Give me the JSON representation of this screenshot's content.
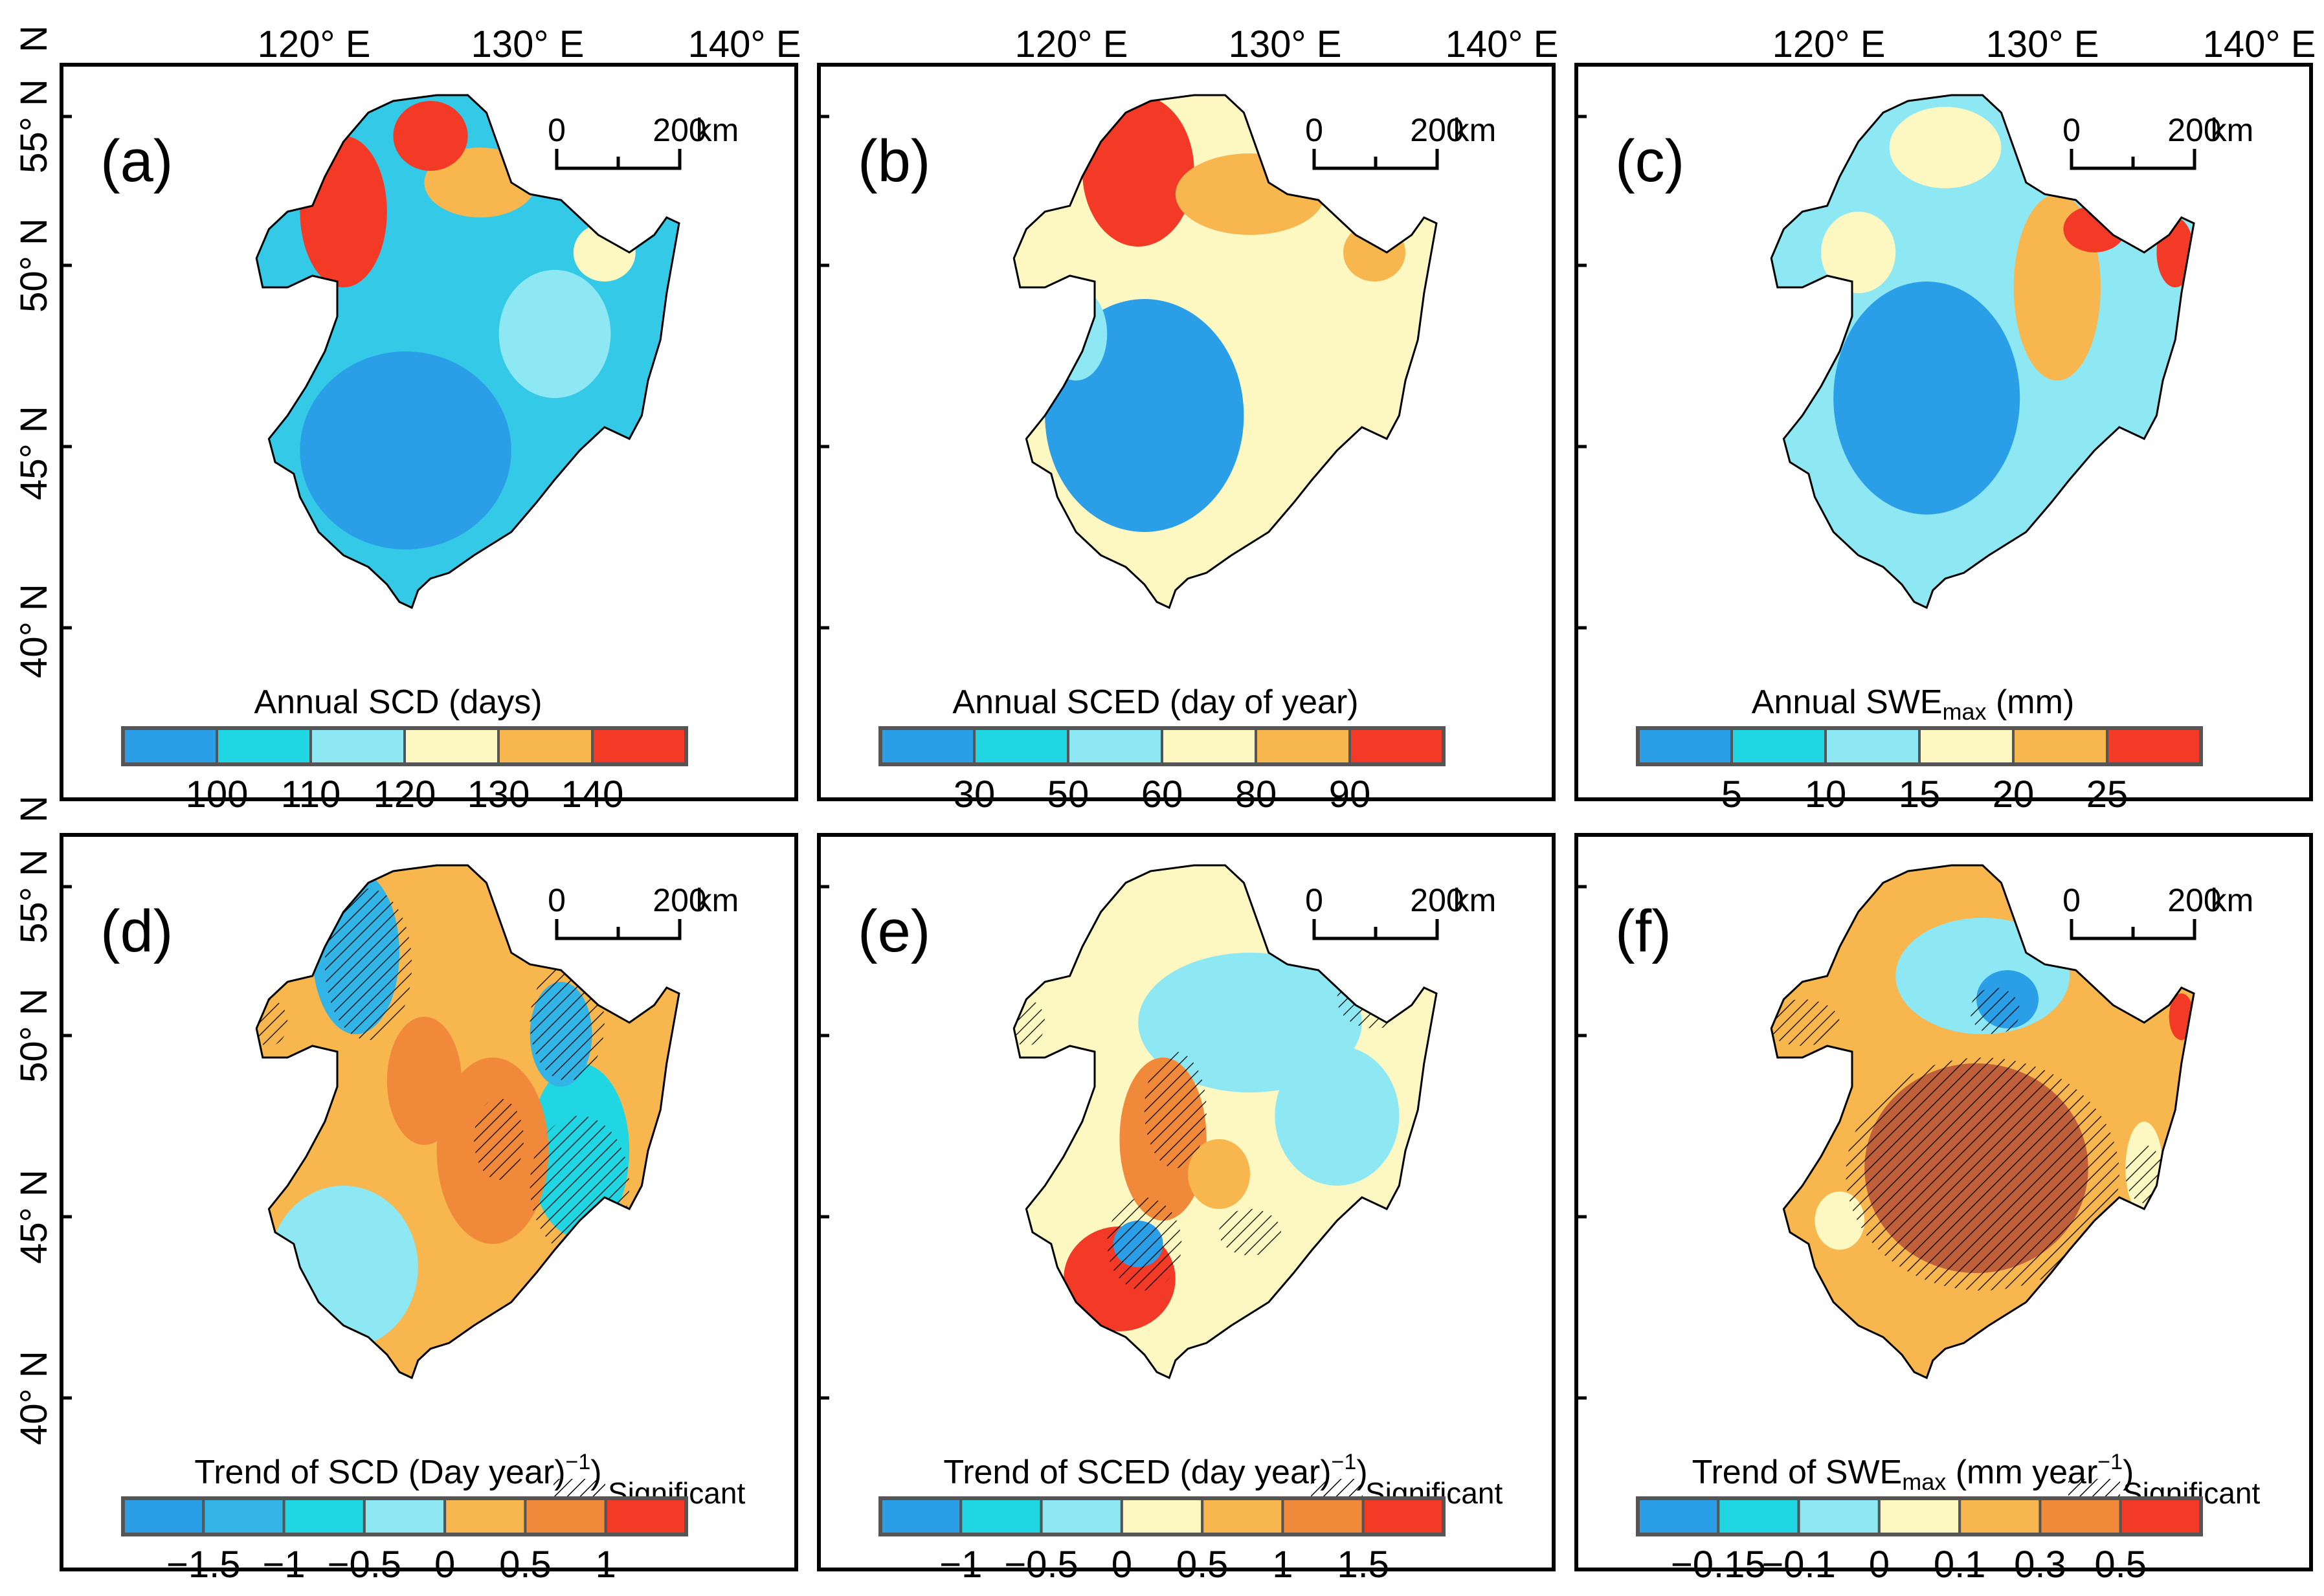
{
  "figure": {
    "lon_labels": [
      "120° E",
      "130° E",
      "140° E"
    ],
    "lat_labels": [
      "55° N",
      "50° N",
      "45° N",
      "40° N"
    ],
    "lat_edge_label": "N",
    "scale": {
      "zero": "0",
      "distance": "200",
      "unit": "km"
    },
    "significant_label": "Significant"
  },
  "panels": [
    {
      "letter": "(a)",
      "title": "Annual SCD (days)",
      "colors": [
        "#2a9fe8",
        "#1fd6e2",
        "#8de8f4",
        "#fdf8c2",
        "#f7b64e",
        "#f23a26"
      ],
      "ticks": [
        "100",
        "110",
        "120",
        "130",
        "140"
      ],
      "significant": false,
      "fill": "#34c9e6",
      "patches": [
        {
          "color": "#2a9fe8"
        },
        {
          "color": "#f23a26"
        },
        {
          "color": "#f7b64e"
        },
        {
          "color": "#f23a26"
        },
        {
          "color": "#8de8f4"
        },
        {
          "color": "#fdf8c2"
        }
      ]
    },
    {
      "letter": "(b)",
      "title": "Annual SCED (day of year)",
      "colors": [
        "#2a9fe8",
        "#1fd6e2",
        "#8de8f4",
        "#fdf8c2",
        "#f7b64e",
        "#f23a26"
      ],
      "ticks": [
        "30",
        "50",
        "60",
        "80",
        "90"
      ],
      "significant": false,
      "fill": "#fdf8c2",
      "patches": [
        {
          "color": "#2a9fe8"
        },
        {
          "color": "#f23a26"
        },
        {
          "color": "#f7b64e"
        },
        {
          "color": "#f7b64e"
        },
        {
          "color": "#8de8f4"
        },
        {
          "color": "#fdf8c2"
        }
      ]
    },
    {
      "letter": "(c)",
      "title": "Annual SWE",
      "title_sub": "max",
      "title_tail": " (mm)",
      "colors": [
        "#2a9fe8",
        "#1fd6e2",
        "#8de8f4",
        "#fdf8c2",
        "#f7b64e",
        "#f23a26"
      ],
      "ticks": [
        "5",
        "10",
        "15",
        "20",
        "25"
      ],
      "significant": false,
      "fill": "#8de8f4",
      "patches": [
        {
          "color": "#2a9fe8"
        },
        {
          "color": "#fdf8c2"
        },
        {
          "color": "#f7b64e"
        },
        {
          "color": "#f23a26"
        },
        {
          "color": "#f23a26"
        },
        {
          "color": "#fdf8c2"
        }
      ]
    },
    {
      "letter": "(d)",
      "title": "Trend of SCD  (Day year",
      "title_sup": "−1",
      "title_tail": ")",
      "colors": [
        "#2a9fe8",
        "#33b4e6",
        "#1fd6e2",
        "#8de8f4",
        "#f7b64e",
        "#f08a3a",
        "#f23a26"
      ],
      "ticks": [
        "−1.5",
        "−1",
        "−0.5",
        "0",
        "0.5",
        "1"
      ],
      "significant": true,
      "fill": "#f7b64e",
      "patches": [
        {
          "color": "#8de8f4"
        },
        {
          "color": "#33b4e6"
        },
        {
          "color": "#1fd6e2"
        },
        {
          "color": "#f08a3a"
        },
        {
          "color": "#33b4e6"
        },
        {
          "color": "#f08a3a"
        }
      ]
    },
    {
      "letter": "(e)",
      "title": "Trend of SCED  (day year",
      "title_sup": "−1",
      "title_tail": ")",
      "colors": [
        "#2a9fe8",
        "#1fd6e2",
        "#8de8f4",
        "#fdf8c2",
        "#f7b64e",
        "#f08a3a",
        "#f23a26"
      ],
      "ticks": [
        "−1",
        "−0.5",
        "0",
        "0.5",
        "1",
        "1.5"
      ],
      "significant": true,
      "fill": "#fdf8c2",
      "patches": [
        {
          "color": "#8de8f4"
        },
        {
          "color": "#8de8f4"
        },
        {
          "color": "#f08a3a"
        },
        {
          "color": "#f23a26"
        },
        {
          "color": "#2a9fe8"
        },
        {
          "color": "#f7b64e"
        }
      ]
    },
    {
      "letter": "(f)",
      "title": "Trend of SWE",
      "title_sub": "max",
      "title_tail": "  (mm year",
      "title_sup": "−1",
      "title_tail2": ")",
      "colors": [
        "#2a9fe8",
        "#1fd6e2",
        "#8de8f4",
        "#fdf8c2",
        "#f7b64e",
        "#f08a3a",
        "#f23a26"
      ],
      "ticks": [
        "−0.15",
        "−0.1",
        "0",
        "0.1",
        "0.3",
        "0.5"
      ],
      "significant": true,
      "fill": "#f7b64e",
      "patches": [
        {
          "color": "#8de8f4"
        },
        {
          "color": "#2a9fe8"
        },
        {
          "color": "#fdf8c2"
        },
        {
          "color": "#c0603a"
        },
        {
          "color": "#fdf8c2"
        },
        {
          "color": "#f23a26"
        }
      ]
    }
  ]
}
